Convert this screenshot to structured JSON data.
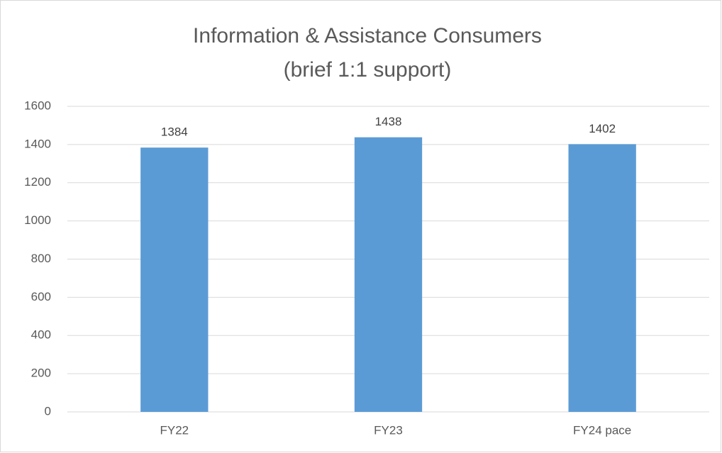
{
  "chart_data": {
    "type": "bar",
    "title": "Information & Assistance Consumers",
    "subtitle": "(brief 1:1 support)",
    "categories": [
      "FY22",
      "FY23",
      "FY24 pace"
    ],
    "values": [
      1384,
      1438,
      1402
    ],
    "color": "#5b9bd5",
    "ylim": [
      0,
      1600
    ],
    "yticks": [
      0,
      200,
      400,
      600,
      800,
      1000,
      1200,
      1400,
      1600
    ],
    "grid": true
  }
}
